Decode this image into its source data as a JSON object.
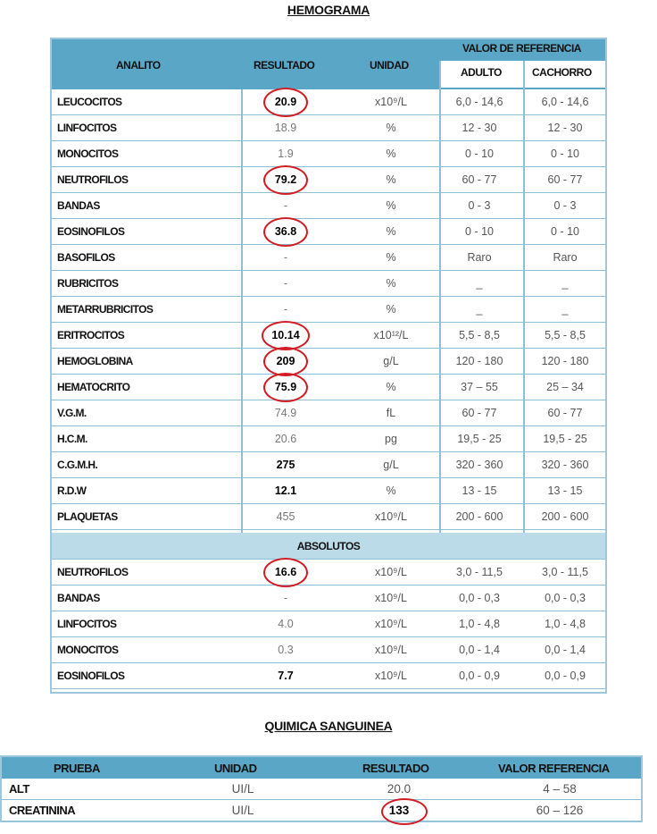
{
  "hemograma": {
    "title": "HEMOGRAMA",
    "headers": {
      "analito": "ANALITO",
      "resultado": "RESULTADO",
      "unidad": "UNIDAD",
      "valor_referencia": "VALOR DE REFERENCIA",
      "adulto": "ADULTO",
      "cachorro": "CACHORRO"
    },
    "rows": [
      {
        "name": "LEUCOCITOS",
        "result": "20.9",
        "unit": "x10⁹/L",
        "adult": "6,0 - 14,6",
        "puppy": "6,0 - 14,6",
        "bold": true,
        "circled": true
      },
      {
        "name": "LINFOCITOS",
        "result": "18.9",
        "unit": "%",
        "adult": "12 - 30",
        "puppy": "12 - 30",
        "bold": false,
        "circled": false
      },
      {
        "name": "MONOCITOS",
        "result": "1.9",
        "unit": "%",
        "adult": "0 - 10",
        "puppy": "0 - 10",
        "bold": false,
        "circled": false
      },
      {
        "name": "NEUTROFILOS",
        "result": "79.2",
        "unit": "%",
        "adult": "60 - 77",
        "puppy": "60 - 77",
        "bold": true,
        "circled": true
      },
      {
        "name": "BANDAS",
        "result": "-",
        "unit": "%",
        "adult": "0 - 3",
        "puppy": "0 - 3",
        "bold": false,
        "circled": false
      },
      {
        "name": "EOSINOFILOS",
        "result": "36.8",
        "unit": "%",
        "adult": "0 - 10",
        "puppy": "0 - 10",
        "bold": true,
        "circled": true
      },
      {
        "name": "BASOFILOS",
        "result": "-",
        "unit": "%",
        "adult": "Raro",
        "puppy": "Raro",
        "bold": false,
        "circled": false
      },
      {
        "name": "RUBRICITOS",
        "result": "-",
        "unit": "%",
        "adult": "_",
        "puppy": "_",
        "bold": false,
        "circled": false
      },
      {
        "name": "METARRUBRICITOS",
        "result": "-",
        "unit": "%",
        "adult": "_",
        "puppy": "_",
        "bold": false,
        "circled": false
      },
      {
        "name": "ERITROCITOS",
        "result": "10.14",
        "unit": "x10¹²/L",
        "adult": "5,5 - 8,5",
        "puppy": "5,5 - 8,5",
        "bold": true,
        "circled": true
      },
      {
        "name": "HEMOGLOBINA",
        "result": "209",
        "unit": "g/L",
        "adult": "120 - 180",
        "puppy": "120 - 180",
        "bold": true,
        "circled": true
      },
      {
        "name": "HEMATOCRITO",
        "result": "75.9",
        "unit": "%",
        "adult": "37 – 55",
        "puppy": "25 – 34",
        "bold": true,
        "circled": true
      },
      {
        "name": "V.G.M.",
        "result": "74.9",
        "unit": "fL",
        "adult": "60 - 77",
        "puppy": "60 - 77",
        "bold": false,
        "circled": false
      },
      {
        "name": "H.C.M.",
        "result": "20.6",
        "unit": "pg",
        "adult": "19,5 - 25",
        "puppy": "19,5 - 25",
        "bold": false,
        "circled": false
      },
      {
        "name": "C.G.M.H.",
        "result": "275",
        "unit": "g/L",
        "adult": "320 - 360",
        "puppy": "320 - 360",
        "bold": true,
        "circled": false
      },
      {
        "name": "R.D.W",
        "result": "12.1",
        "unit": "%",
        "adult": "13 - 15",
        "puppy": "13 - 15",
        "bold": true,
        "circled": false
      },
      {
        "name": "PLAQUETAS",
        "result": "455",
        "unit": "x10⁹/L",
        "adult": "200 - 600",
        "puppy": "200 - 600",
        "bold": false,
        "circled": false
      }
    ],
    "absolutos_label": "ABSOLUTOS",
    "abs_rows": [
      {
        "name": "NEUTROFILOS",
        "result": "16.6",
        "unit": "x10⁹/L",
        "adult": "3,0 - 11,5",
        "puppy": "3,0 - 11,5",
        "bold": true,
        "circled": true
      },
      {
        "name": "BANDAS",
        "result": "-",
        "unit": "x10⁹/L",
        "adult": "0,0 - 0,3",
        "puppy": "0,0 - 0,3",
        "bold": false,
        "circled": false
      },
      {
        "name": "LINFOCITOS",
        "result": "4.0",
        "unit": "x10⁹/L",
        "adult": "1,0 - 4,8",
        "puppy": "1,0 - 4,8",
        "bold": false,
        "circled": false
      },
      {
        "name": "MONOCITOS",
        "result": "0.3",
        "unit": "x10⁹/L",
        "adult": "0,0 - 1,4",
        "puppy": "0,0 - 1,4",
        "bold": false,
        "circled": false
      },
      {
        "name": "EOSINOFILOS",
        "result": "7.7",
        "unit": "x10⁹/L",
        "adult": "0,0 - 0,9",
        "puppy": "0,0 - 0,9",
        "bold": true,
        "circled": false
      }
    ]
  },
  "quimica": {
    "title": "QUIMICA SANGUINEA",
    "headers": {
      "prueba": "PRUEBA",
      "unidad": "UNIDAD",
      "resultado": "RESULTADO",
      "valor": "VALOR REFERENCIA"
    },
    "rows": [
      {
        "name": "ALT",
        "unit": "UI/L",
        "result": "20.0",
        "ref": "4 – 58",
        "circled": false
      },
      {
        "name": "CREATININA",
        "unit": "UI/L",
        "result": "133",
        "ref": "60 – 126",
        "circled": true
      }
    ]
  },
  "colors": {
    "header": "#5aa6c6",
    "subheader": "#bcdbe9",
    "border": "#8dbfd6",
    "circle": "#d21c24"
  }
}
